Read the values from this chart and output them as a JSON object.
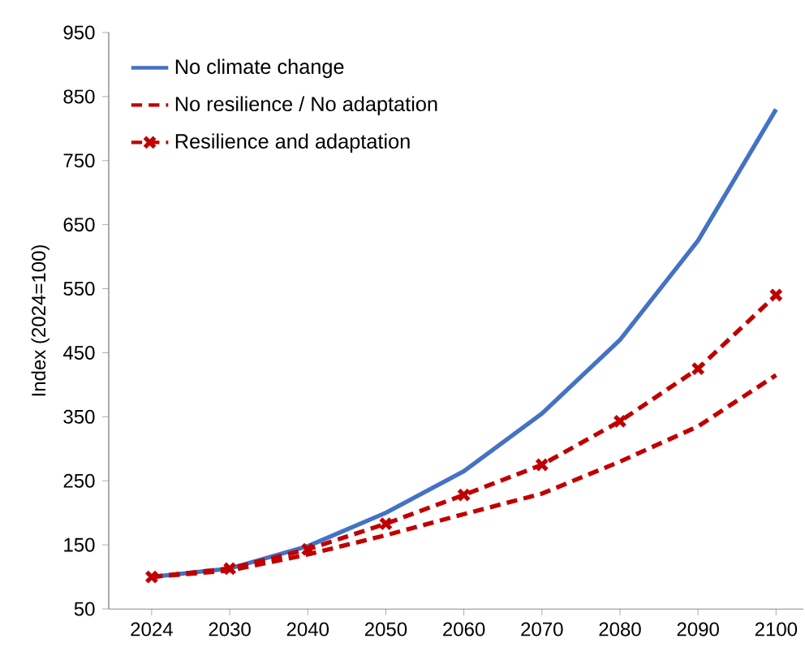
{
  "chart_data": {
    "type": "line",
    "ylabel": "Index (2024=100)",
    "categories": [
      "2024",
      "2030",
      "2040",
      "2050",
      "2060",
      "2070",
      "2080",
      "2090",
      "2100"
    ],
    "ylim": [
      50,
      950
    ],
    "yticks": [
      50,
      150,
      250,
      350,
      450,
      550,
      650,
      750,
      850,
      950
    ],
    "grid": false,
    "legend": "top left",
    "series": [
      {
        "name": "No climate change",
        "color": "#4472c4",
        "line_style": "solid",
        "marker": "none",
        "values": [
          100,
          113,
          148,
          200,
          265,
          355,
          470,
          625,
          830
        ]
      },
      {
        "name": "No resilience / No adaptation",
        "color": "#c00000",
        "line_style": "dashed",
        "marker": "none",
        "values": [
          100,
          110,
          135,
          165,
          198,
          230,
          280,
          335,
          415
        ]
      },
      {
        "name": "Resilience and adaptation",
        "color": "#c00000",
        "line_style": "dashed",
        "marker": "cross",
        "values": [
          100,
          113,
          143,
          183,
          228,
          275,
          343,
          425,
          540
        ]
      }
    ]
  }
}
